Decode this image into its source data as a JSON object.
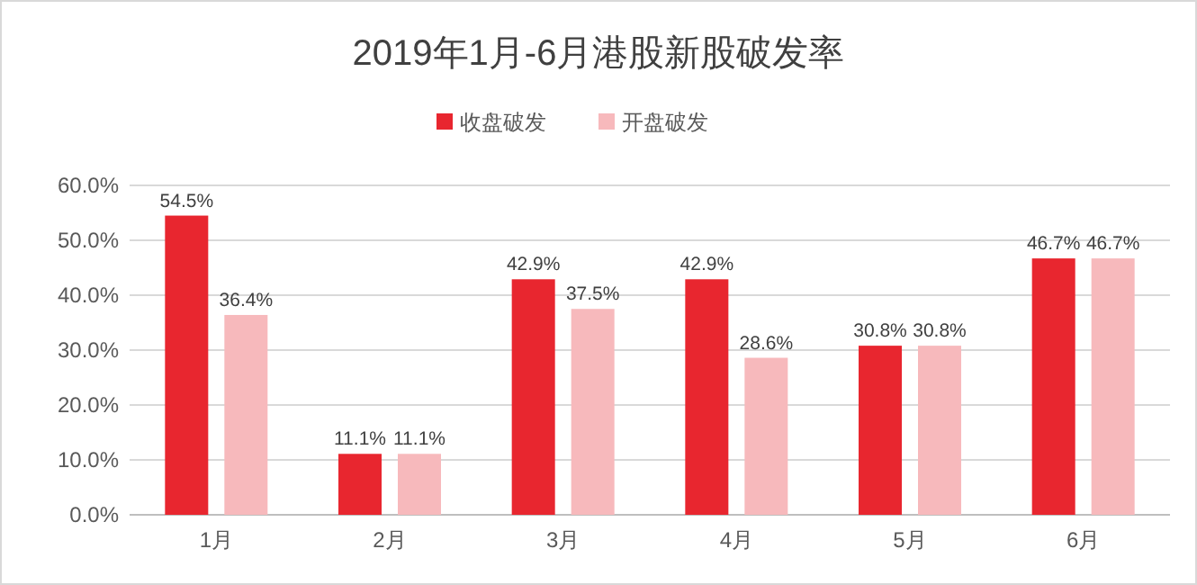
{
  "chart_data": {
    "type": "bar",
    "title": "2019年1月-6月港股新股破发率",
    "categories": [
      "1月",
      "2月",
      "3月",
      "4月",
      "5月",
      "6月"
    ],
    "series": [
      {
        "name": "收盘破发",
        "color": "#e8262f",
        "values": [
          54.5,
          11.1,
          42.9,
          42.9,
          30.8,
          46.7
        ],
        "value_labels": [
          "54.5%",
          "11.1%",
          "42.9%",
          "42.9%",
          "30.8%",
          "46.7%"
        ]
      },
      {
        "name": "开盘破发",
        "color": "#f7b9bc",
        "values": [
          36.4,
          11.1,
          37.5,
          28.6,
          30.8,
          46.7
        ],
        "value_labels": [
          "36.4%",
          "11.1%",
          "37.5%",
          "28.6%",
          "30.8%",
          "46.7%"
        ]
      }
    ],
    "ylim": [
      0,
      60
    ],
    "yticks": [
      {
        "value": 0,
        "label": "0.0%"
      },
      {
        "value": 10,
        "label": "10.0%"
      },
      {
        "value": 20,
        "label": "20.0%"
      },
      {
        "value": 30,
        "label": "30.0%"
      },
      {
        "value": 40,
        "label": "40.0%"
      },
      {
        "value": 50,
        "label": "50.0%"
      },
      {
        "value": 60,
        "label": "60.0%"
      }
    ],
    "grid": "y",
    "legend": "top"
  }
}
